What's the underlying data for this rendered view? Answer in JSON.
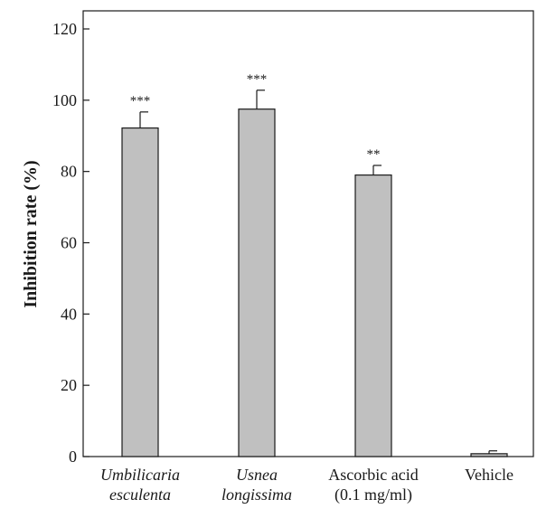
{
  "chart_data": {
    "type": "bar",
    "title": "",
    "xlabel": "",
    "ylabel": "Inhibition rate (%)",
    "ylim": [
      0,
      120
    ],
    "yticks": [
      0,
      20,
      40,
      60,
      80,
      100,
      120
    ],
    "grid": false,
    "categories": [
      {
        "lines": [
          "Umbilicaria",
          "esculenta"
        ],
        "italic": true
      },
      {
        "lines": [
          "Usnea",
          "longissima"
        ],
        "italic": true
      },
      {
        "lines": [
          "Ascorbic acid",
          "(0.1 mg/ml)"
        ],
        "italic": false
      },
      {
        "lines": [
          "Vehicle"
        ],
        "italic": false
      }
    ],
    "values": [
      92.2,
      97.5,
      79.0,
      0.8
    ],
    "errors": [
      4.5,
      5.3,
      2.7,
      0.8
    ],
    "significance": [
      "***",
      "***",
      "**",
      ""
    ],
    "bar_color": "#c0c0c0",
    "edge_color": "#1a1a1a"
  }
}
